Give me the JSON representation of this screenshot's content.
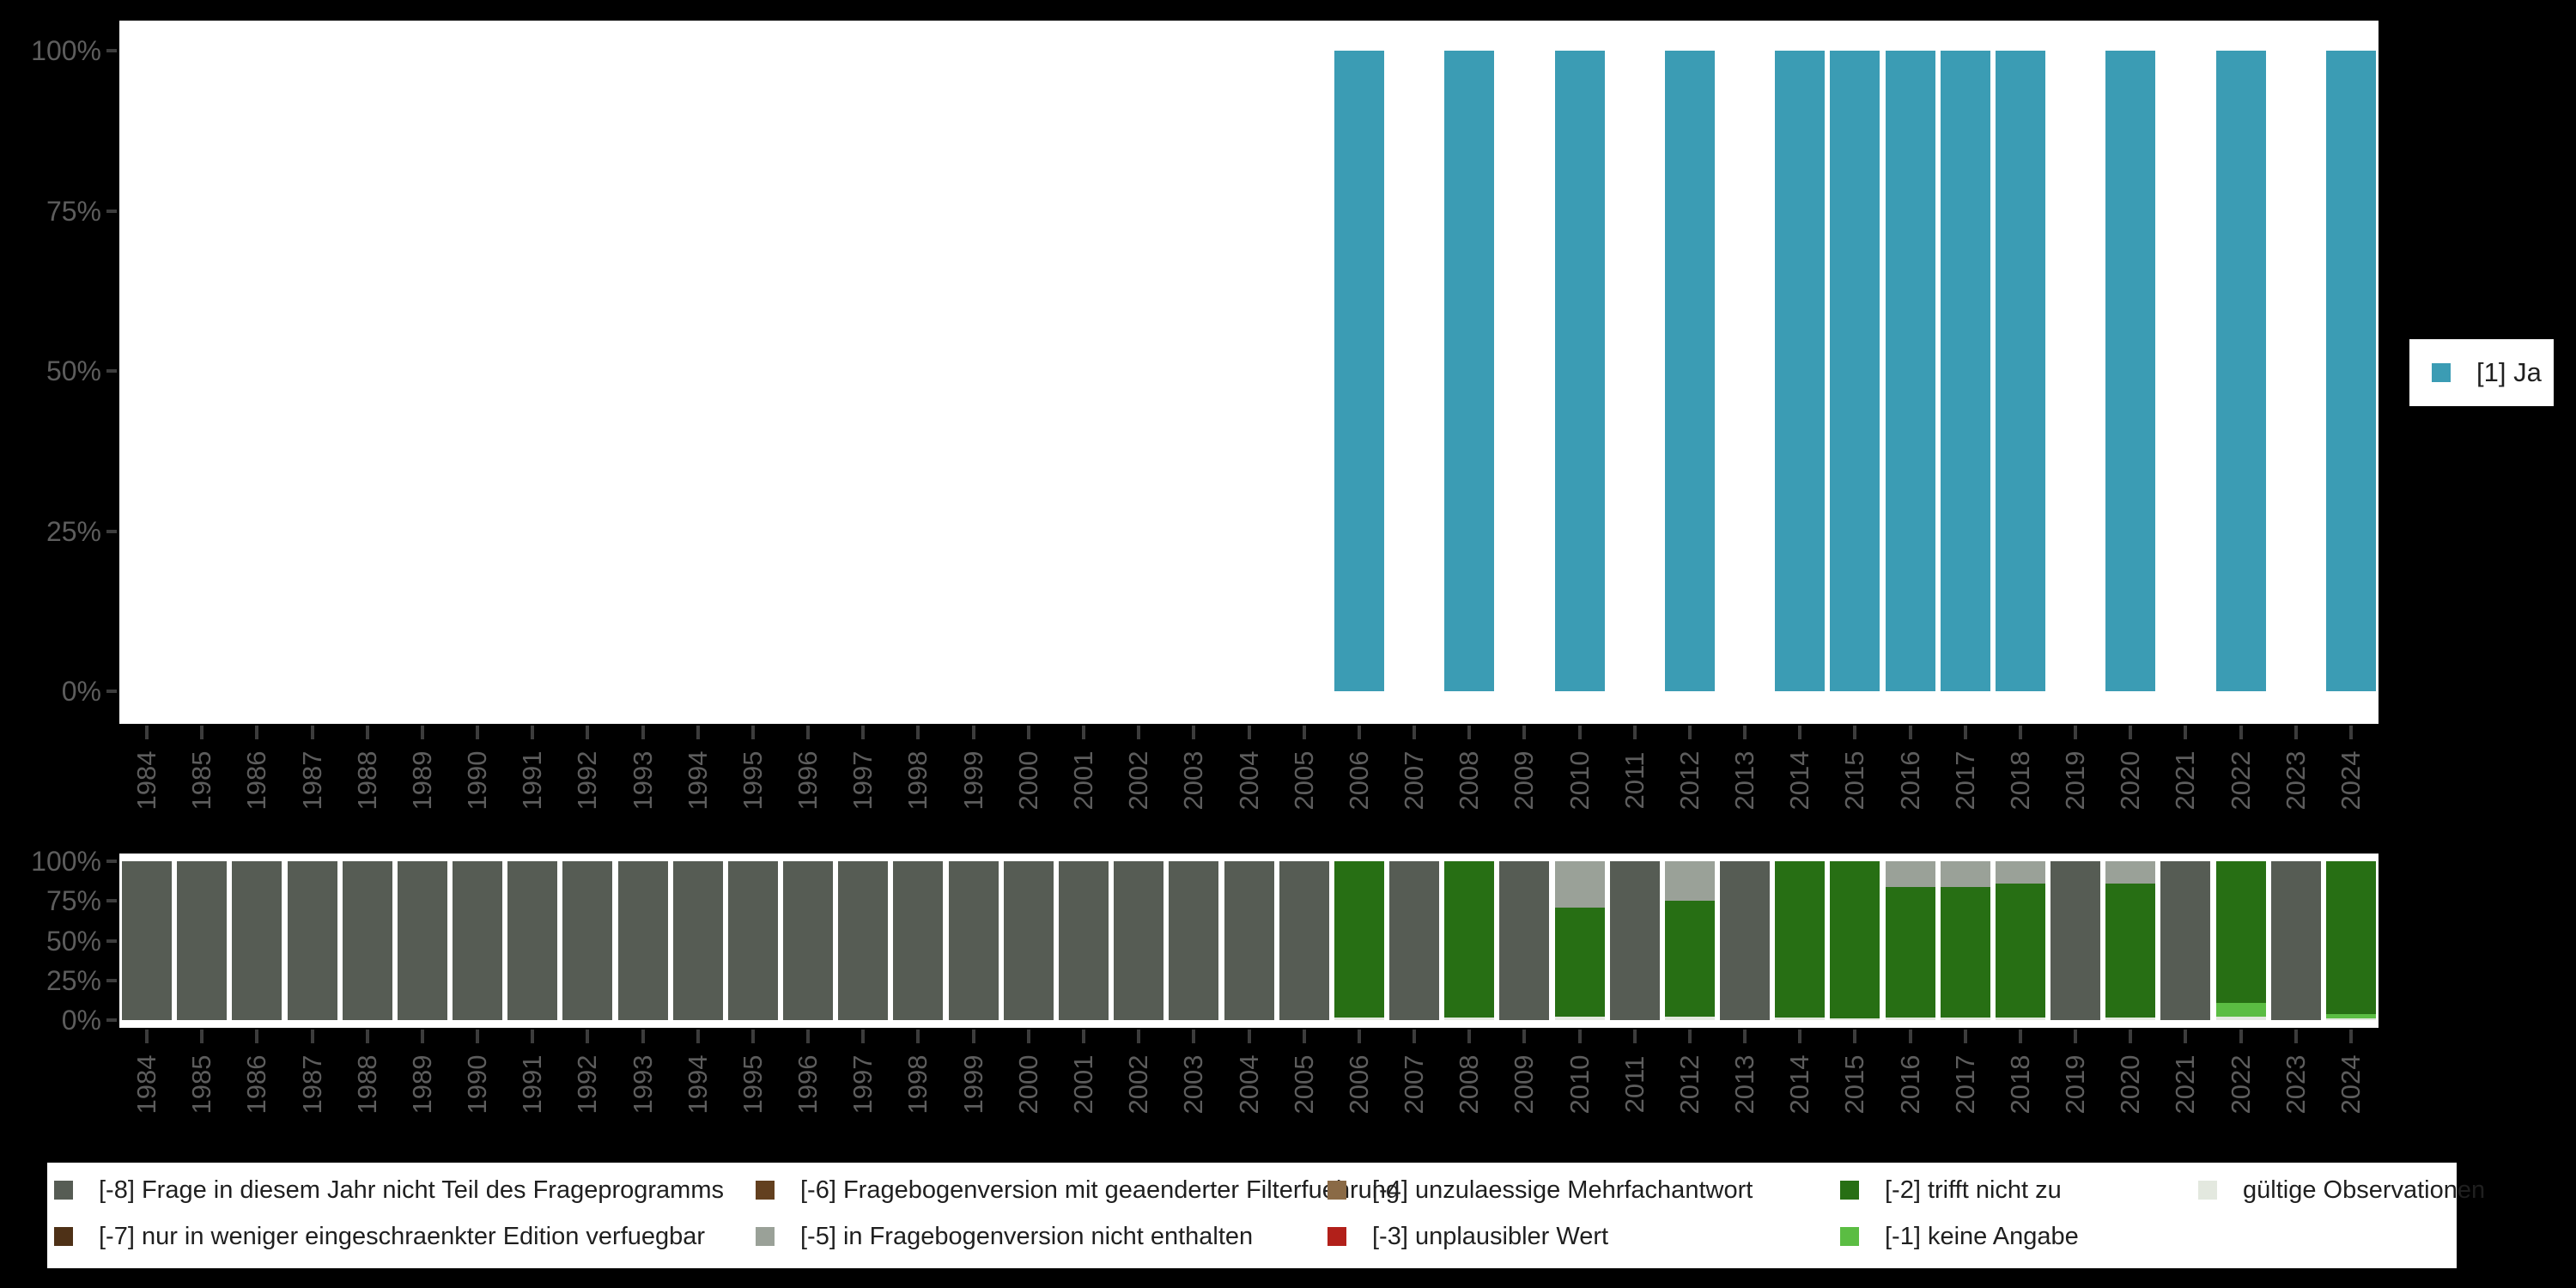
{
  "page": {
    "background": "#000000",
    "plot_background": "#FFFFFF",
    "axis_text_color": "#5D5D5D",
    "tick_color": "#3C3C3C",
    "legend_text_color": "#1F1F1F"
  },
  "chart_data": [
    {
      "id": "presence-chart",
      "type": "bar",
      "title": "",
      "xlabel": "",
      "ylabel": "",
      "ylim": [
        0,
        100
      ],
      "yticks": [
        "0%",
        "25%",
        "50%",
        "75%",
        "100%"
      ],
      "grid": false,
      "legend_position": "right",
      "x": [
        "1984",
        "1985",
        "1986",
        "1987",
        "1988",
        "1989",
        "1990",
        "1991",
        "1992",
        "1993",
        "1994",
        "1995",
        "1996",
        "1997",
        "1998",
        "1999",
        "2000",
        "2001",
        "2002",
        "2003",
        "2004",
        "2005",
        "2006",
        "2007",
        "2008",
        "2009",
        "2010",
        "2011",
        "2012",
        "2013",
        "2014",
        "2015",
        "2016",
        "2017",
        "2018",
        "2019",
        "2020",
        "2021",
        "2022",
        "2023",
        "2024"
      ],
      "series": [
        {
          "name": "[1] Ja",
          "color": "#3B9CB4",
          "values": [
            0,
            0,
            0,
            0,
            0,
            0,
            0,
            0,
            0,
            0,
            0,
            0,
            0,
            0,
            0,
            0,
            0,
            0,
            0,
            0,
            0,
            0,
            100,
            0,
            100,
            0,
            100,
            0,
            100,
            0,
            100,
            100,
            100,
            100,
            100,
            0,
            100,
            0,
            100,
            0,
            100
          ]
        }
      ]
    },
    {
      "id": "missing-codes-chart",
      "type": "stacked-bar",
      "title": "",
      "xlabel": "",
      "ylabel": "",
      "ylim": [
        0,
        100
      ],
      "yticks": [
        "0%",
        "25%",
        "50%",
        "75%",
        "100%"
      ],
      "grid": false,
      "legend_position": "bottom",
      "x": [
        "1984",
        "1985",
        "1986",
        "1987",
        "1988",
        "1989",
        "1990",
        "1991",
        "1992",
        "1993",
        "1994",
        "1995",
        "1996",
        "1997",
        "1998",
        "1999",
        "2000",
        "2001",
        "2002",
        "2003",
        "2004",
        "2005",
        "2006",
        "2007",
        "2008",
        "2009",
        "2010",
        "2011",
        "2012",
        "2013",
        "2014",
        "2015",
        "2016",
        "2017",
        "2018",
        "2019",
        "2020",
        "2021",
        "2022",
        "2023",
        "2024"
      ],
      "series": [
        {
          "name": "gültige Observationen",
          "color": "#E3E8DF",
          "values": [
            0,
            0,
            0,
            0,
            0,
            0,
            0,
            0,
            0,
            0,
            0,
            0,
            0,
            0,
            0,
            0,
            0,
            0,
            0,
            0,
            0,
            0,
            1.5,
            0,
            1.5,
            0,
            2,
            0,
            2,
            0,
            1.5,
            1,
            1.5,
            1.5,
            1.5,
            0,
            1.5,
            0,
            2,
            0,
            1
          ]
        },
        {
          "name": "[-1] keine Angabe",
          "color": "#5BBD43",
          "values": [
            0,
            0,
            0,
            0,
            0,
            0,
            0,
            0,
            0,
            0,
            0,
            0,
            0,
            0,
            0,
            0,
            0,
            0,
            0,
            0,
            0,
            0,
            0,
            0,
            0,
            0,
            0,
            0,
            0,
            0,
            0,
            0,
            0,
            0,
            0,
            0,
            0,
            0,
            9,
            0,
            3
          ]
        },
        {
          "name": "[-2] trifft nicht zu",
          "color": "#276F14",
          "values": [
            0,
            0,
            0,
            0,
            0,
            0,
            0,
            0,
            0,
            0,
            0,
            0,
            0,
            0,
            0,
            0,
            0,
            0,
            0,
            0,
            0,
            0,
            98.5,
            0,
            98.5,
            0,
            69,
            0,
            73,
            0,
            98.5,
            99,
            82.5,
            82.5,
            84.5,
            0,
            84.5,
            0,
            89,
            0,
            96
          ]
        },
        {
          "name": "[-5] in Fragebogenversion nicht enthalten",
          "color": "#9AA198",
          "values": [
            0,
            0,
            0,
            0,
            0,
            0,
            0,
            0,
            0,
            0,
            0,
            0,
            0,
            0,
            0,
            0,
            0,
            0,
            0,
            0,
            0,
            0,
            0,
            0,
            0,
            0,
            29,
            0,
            25,
            0,
            0,
            0,
            16,
            16,
            14,
            0,
            14,
            0,
            0,
            0,
            0
          ]
        },
        {
          "name": "[-8] Frage in diesem Jahr nicht Teil des Frageprogramms",
          "color": "#565C54",
          "values": [
            100,
            100,
            100,
            100,
            100,
            100,
            100,
            100,
            100,
            100,
            100,
            100,
            100,
            100,
            100,
            100,
            100,
            100,
            100,
            100,
            100,
            100,
            0,
            100,
            0,
            100,
            0,
            100,
            0,
            100,
            0,
            0,
            0,
            0,
            0,
            100,
            0,
            100,
            0,
            100,
            0
          ]
        }
      ]
    }
  ],
  "top_legend": {
    "label": "[1] Ja",
    "color": "#3B9CB4"
  },
  "bottom_legend": {
    "items": [
      {
        "label": "[-8] Frage in diesem Jahr nicht Teil des Frageprogramms",
        "color": "#565C54"
      },
      {
        "label": "[-7] nur in weniger eingeschraenkter Edition verfuegbar",
        "color": "#4E3117"
      },
      {
        "label": "[-6] Fragebogenversion mit geaenderter Filterfuehrung",
        "color": "#63401F"
      },
      {
        "label": "[-5] in Fragebogenversion nicht enthalten",
        "color": "#9AA198"
      },
      {
        "label": "[-4] unzulaessige Mehrfachantwort",
        "color": "#8A6A46"
      },
      {
        "label": "[-3] unplausibler Wert",
        "color": "#B2201A"
      },
      {
        "label": "[-2] trifft nicht zu",
        "color": "#276F14"
      },
      {
        "label": "[-1] keine Angabe",
        "color": "#5BBD43"
      },
      {
        "label": "gültige Observationen",
        "color": "#E3E8DF"
      }
    ]
  }
}
